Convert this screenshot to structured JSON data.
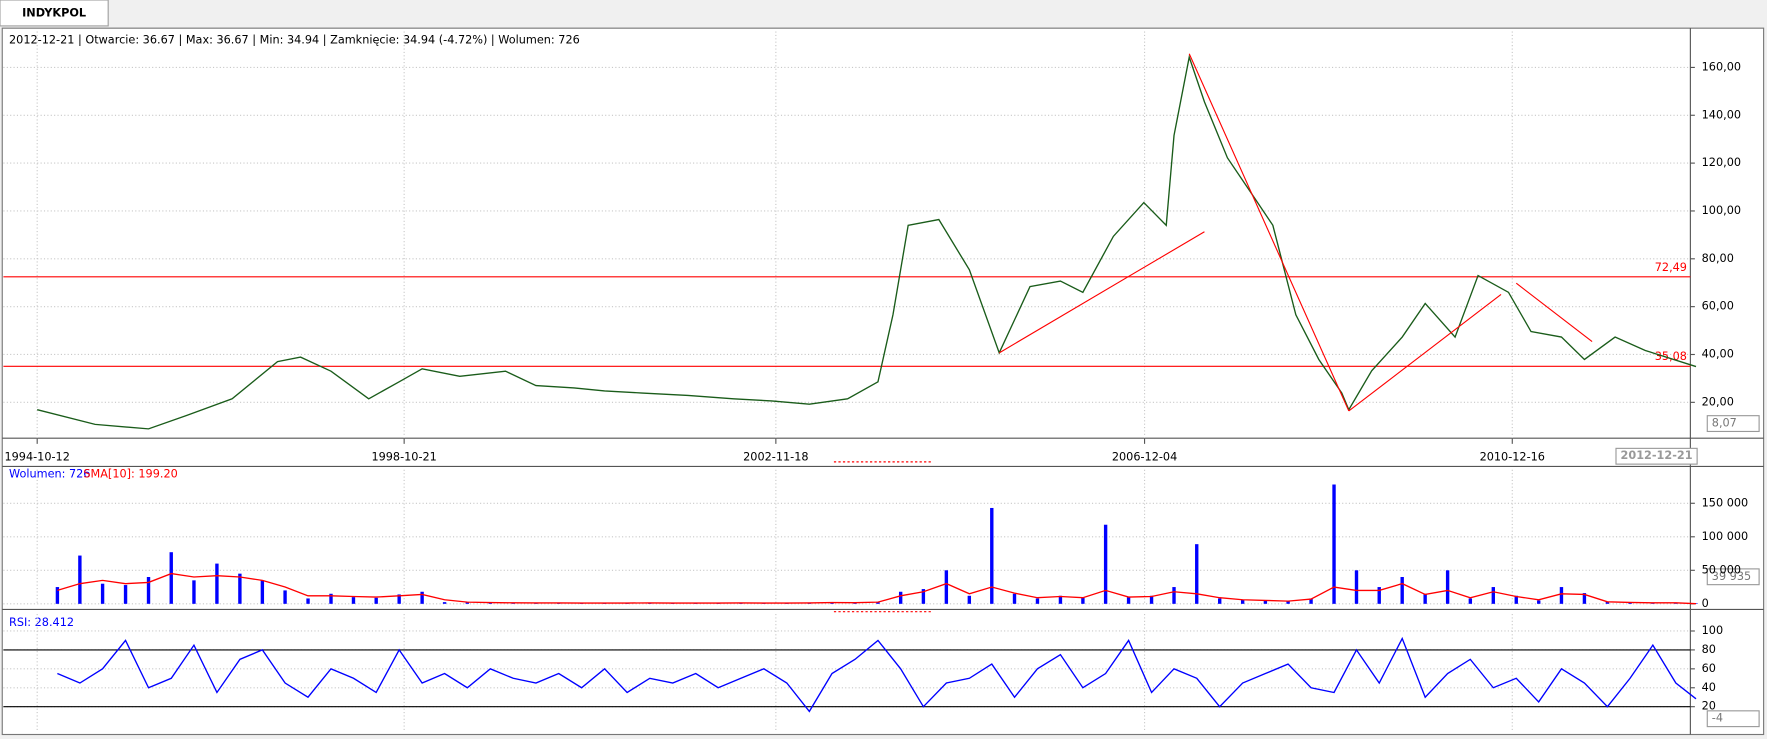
{
  "tab": "INDYKPOL",
  "info": "2012-12-21 | Otwarcie: 36.67 | Max: 36.67 | Min: 34.94 | Zamknięcie: 34.94 (-4.72%)  | Wolumen: 726",
  "chart_data": [
    {
      "type": "line",
      "grid": true,
      "x": [
        "1994-10-12",
        "1995-06-01",
        "1996-01-01",
        "1996-06-01",
        "1996-12-01",
        "1997-06-01",
        "1997-09-01",
        "1998-01-01",
        "1998-06-01",
        "1998-10-01",
        "1999-01-01",
        "1999-06-01",
        "1999-12-01",
        "2000-04-01",
        "2000-09-01",
        "2001-01-01",
        "2001-06-01",
        "2001-12-01",
        "2002-06-01",
        "2002-11-01",
        "2003-04-01",
        "2003-09-01",
        "2004-01-01",
        "2004-03-01",
        "2004-05-01",
        "2004-09-01",
        "2005-01-01",
        "2005-05-01",
        "2005-09-01",
        "2006-01-01",
        "2006-04-01",
        "2006-08-01",
        "2006-12-01",
        "2007-03-01",
        "2007-04-01",
        "2007-06-01",
        "2007-08-01",
        "2007-11-01",
        "2008-02-01",
        "2008-05-01",
        "2008-08-01",
        "2008-11-01",
        "2009-02-01",
        "2009-03-01",
        "2009-06-01",
        "2009-10-01",
        "2010-01-01",
        "2010-05-01",
        "2010-08-01",
        "2010-12-01",
        "2011-03-01",
        "2011-07-01",
        "2011-10-01",
        "2012-02-01",
        "2012-06-01",
        "2012-12-21"
      ],
      "series": [
        {
          "color": "#1a5c1a",
          "values": [
            16.9,
            10.8,
            8.9,
            14.5,
            21.5,
            37,
            38.9,
            33,
            21.5,
            28.6,
            34,
            30.9,
            33,
            27,
            26,
            24.8,
            23.9,
            22.9,
            21.5,
            20.6,
            19.2,
            21.5,
            28.6,
            56.6,
            94,
            96.4,
            75.4,
            40.7,
            68.4,
            70.7,
            66,
            89.4,
            103.5,
            94,
            131.6,
            164.3,
            145.6,
            122.2,
            108,
            94,
            56.6,
            37.9,
            23.9,
            16.9,
            33.2,
            47.3,
            61.3,
            47.3,
            73,
            66,
            49.6,
            47.3,
            37.9,
            47.3,
            41.7,
            34.94
          ]
        }
      ],
      "xlim": [
        "1994-10-12",
        "2012-12-21"
      ],
      "xticks": [
        "1994-10-12",
        "1998-10-21",
        "2002-11-18",
        "2006-12-04",
        "2010-12-16"
      ],
      "ylim": [
        5,
        175
      ],
      "yticks": [
        {
          "value": 20,
          "label": "20,00"
        },
        {
          "value": 40,
          "label": "40,00"
        },
        {
          "value": 60,
          "label": "60,00"
        },
        {
          "value": 80,
          "label": "80,00"
        },
        {
          "value": 100,
          "label": "100,00"
        },
        {
          "value": 120,
          "label": "120,00"
        },
        {
          "value": 140,
          "label": "140,00"
        },
        {
          "value": 160,
          "label": "160,00"
        }
      ],
      "hline_color": "#ff0000",
      "hlines": [
        {
          "value": 72.49,
          "label": "72,49"
        },
        {
          "value": 35.08,
          "label": "35,08"
        }
      ],
      "trendline_color": "#ff0000",
      "trendlines": [
        {
          "x": [
            "2005-05-01",
            "2007-08-01"
          ],
          "values": [
            40.7,
            91.3
          ]
        },
        {
          "x": [
            "2007-06-01",
            "2009-03-01"
          ],
          "values": [
            165.7,
            16.4
          ]
        },
        {
          "x": [
            "2009-03-01",
            "2010-11-01"
          ],
          "values": [
            16.4,
            65.1
          ]
        },
        {
          "x": [
            "2011-01-01",
            "2011-11-01"
          ],
          "values": [
            69.8,
            45.4
          ]
        }
      ],
      "badge": "8,07"
    },
    {
      "type": "bar",
      "grid": true,
      "x": [
        "1995-01-01",
        "1995-04-01",
        "1995-07-01",
        "1995-10-01",
        "1996-01-01",
        "1996-04-01",
        "1996-07-01",
        "1996-10-01",
        "1997-01-01",
        "1997-04-01",
        "1997-07-01",
        "1997-10-01",
        "1998-01-01",
        "1998-04-01",
        "1998-07-01",
        "1998-10-01",
        "1999-01-01",
        "1999-04-01",
        "1999-07-01",
        "1999-10-01",
        "2000-01-01",
        "2000-04-01",
        "2000-07-01",
        "2000-10-01",
        "2001-01-01",
        "2001-04-01",
        "2001-07-01",
        "2001-10-01",
        "2002-01-01",
        "2002-04-01",
        "2002-07-01",
        "2002-10-01",
        "2003-01-01",
        "2003-04-01",
        "2003-07-01",
        "2003-10-01",
        "2004-01-01",
        "2004-04-01",
        "2004-07-01",
        "2004-10-01",
        "2005-01-01",
        "2005-04-01",
        "2005-07-01",
        "2005-10-01",
        "2006-01-01",
        "2006-04-01",
        "2006-07-01",
        "2006-10-01",
        "2007-01-01",
        "2007-04-01",
        "2007-07-01",
        "2007-10-01",
        "2008-01-01",
        "2008-04-01",
        "2008-07-01",
        "2008-10-01",
        "2009-01-01",
        "2009-04-01",
        "2009-07-01",
        "2009-10-01",
        "2010-01-01",
        "2010-04-01",
        "2010-07-01",
        "2010-10-01",
        "2011-01-01",
        "2011-04-01",
        "2011-07-01",
        "2011-10-01",
        "2012-01-01",
        "2012-04-01",
        "2012-07-01",
        "2012-10-01",
        "2012-12-21"
      ],
      "series": [
        {
          "color": "#0000ff",
          "type": "bar",
          "values": [
            25000,
            72000,
            30000,
            28000,
            40000,
            77000,
            35000,
            60000,
            45000,
            35000,
            20000,
            8000,
            15000,
            10000,
            9000,
            14000,
            18000,
            2500,
            2000,
            1500,
            1500,
            1200,
            1500,
            1000,
            1200,
            1000,
            1500,
            1200,
            1000,
            1200,
            1500,
            1000,
            1200,
            1500,
            2000,
            1500,
            3000,
            18000,
            22000,
            50000,
            12000,
            143000,
            15000,
            8000,
            12000,
            9000,
            118000,
            10000,
            12000,
            25000,
            89000,
            8000,
            6000,
            5000,
            4000,
            8000,
            178000,
            50000,
            25000,
            40000,
            15000,
            50000,
            8000,
            25000,
            12000,
            5000,
            25000,
            16000,
            3000,
            2000,
            1500,
            1500,
            726
          ]
        },
        {
          "color": "#ff0000",
          "type": "line",
          "values": [
            20000,
            30000,
            35000,
            30000,
            32000,
            45000,
            40000,
            42000,
            40000,
            35000,
            25000,
            12000,
            12000,
            11000,
            10000,
            12000,
            14000,
            6000,
            2500,
            1800,
            1500,
            1300,
            1400,
            1100,
            1200,
            1100,
            1300,
            1200,
            1100,
            1200,
            1300,
            1100,
            1200,
            1400,
            1800,
            1600,
            2500,
            12000,
            18000,
            30000,
            15000,
            25000,
            16000,
            9000,
            11000,
            9000,
            20000,
            10000,
            11000,
            18000,
            15000,
            9000,
            6000,
            5000,
            4000,
            7000,
            25000,
            20000,
            20000,
            30000,
            14000,
            20000,
            9000,
            18000,
            11000,
            6000,
            15000,
            14000,
            3000,
            2000,
            1500,
            1500,
            199.2
          ]
        }
      ],
      "xlim": [
        "1994-10-12",
        "2012-12-21"
      ],
      "ylim": [
        0,
        200000
      ],
      "yticks": [
        0,
        {
          "value": 50000,
          "label": "50 000"
        },
        {
          "value": 100000,
          "label": "100 000"
        },
        {
          "value": 150000,
          "label": "150 000"
        }
      ],
      "legend": [
        "Wolumen: 726",
        "SMA[10]: 199.20"
      ],
      "badge": "39 935"
    },
    {
      "type": "line",
      "grid": true,
      "x": [
        "1995-01-01",
        "1995-04-01",
        "1995-07-01",
        "1995-10-01",
        "1996-01-01",
        "1996-04-01",
        "1996-07-01",
        "1996-10-01",
        "1997-01-01",
        "1997-04-01",
        "1997-07-01",
        "1997-10-01",
        "1998-01-01",
        "1998-04-01",
        "1998-07-01",
        "1998-10-01",
        "1999-01-01",
        "1999-04-01",
        "1999-07-01",
        "1999-10-01",
        "2000-01-01",
        "2000-04-01",
        "2000-07-01",
        "2000-10-01",
        "2001-01-01",
        "2001-04-01",
        "2001-07-01",
        "2001-10-01",
        "2002-01-01",
        "2002-04-01",
        "2002-07-01",
        "2002-10-01",
        "2003-01-01",
        "2003-04-01",
        "2003-07-01",
        "2003-10-01",
        "2004-01-01",
        "2004-04-01",
        "2004-07-01",
        "2004-10-01",
        "2005-01-01",
        "2005-04-01",
        "2005-07-01",
        "2005-10-01",
        "2006-01-01",
        "2006-04-01",
        "2006-07-01",
        "2006-10-01",
        "2007-01-01",
        "2007-04-01",
        "2007-07-01",
        "2007-10-01",
        "2008-01-01",
        "2008-04-01",
        "2008-07-01",
        "2008-10-01",
        "2009-01-01",
        "2009-04-01",
        "2009-07-01",
        "2009-10-01",
        "2010-01-01",
        "2010-04-01",
        "2010-07-01",
        "2010-10-01",
        "2011-01-01",
        "2011-04-01",
        "2011-07-01",
        "2011-10-01",
        "2012-01-01",
        "2012-04-01",
        "2012-07-01",
        "2012-10-01",
        "2012-12-21"
      ],
      "series": [
        {
          "color": "#0000ff",
          "values": [
            55,
            45,
            60,
            90,
            40,
            50,
            85,
            35,
            70,
            80,
            45,
            30,
            60,
            50,
            35,
            80,
            45,
            55,
            40,
            60,
            50,
            45,
            55,
            40,
            60,
            35,
            50,
            45,
            55,
            40,
            50,
            60,
            45,
            15,
            55,
            70,
            90,
            60,
            20,
            45,
            50,
            65,
            30,
            60,
            75,
            40,
            55,
            90,
            35,
            60,
            50,
            20,
            45,
            55,
            65,
            40,
            35,
            80,
            45,
            92,
            30,
            55,
            70,
            40,
            50,
            25,
            60,
            45,
            20,
            50,
            85,
            45,
            28.412
          ]
        }
      ],
      "xlim": [
        "1994-10-12",
        "2012-12-21"
      ],
      "ylim": [
        -7,
        118
      ],
      "yticks": [
        20,
        40,
        60,
        80,
        100
      ],
      "level_color": "#000000",
      "levels": [
        20,
        80
      ],
      "legend": [
        "RSI: 28.412"
      ],
      "badge": "-4"
    }
  ]
}
